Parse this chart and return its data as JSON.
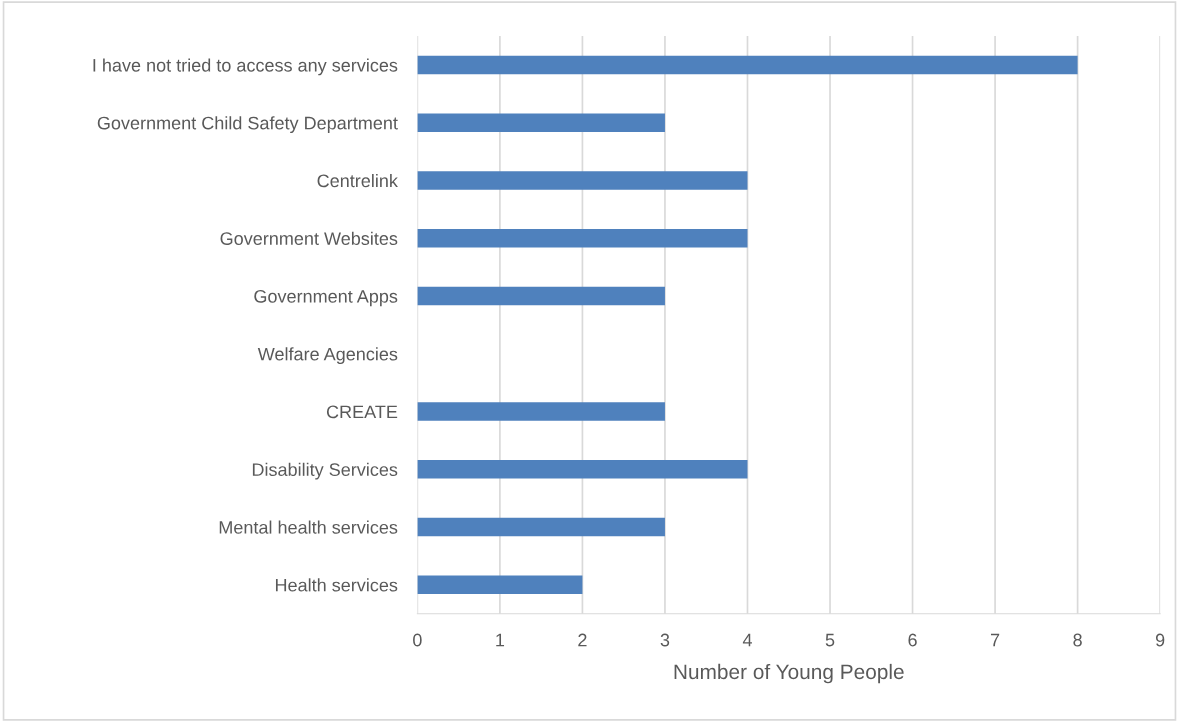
{
  "chart_data": {
    "type": "bar",
    "orientation": "horizontal",
    "xlabel": "Number of Young People",
    "categories": [
      "I have not tried to access any services",
      "Government Child Safety Department",
      "Centrelink",
      "Government Websites",
      "Government Apps",
      "Welfare Agencies",
      "CREATE",
      "Disability Services",
      "Mental health services",
      "Health services"
    ],
    "values": [
      8,
      3,
      4,
      4,
      3,
      0,
      3,
      4,
      3,
      2
    ],
    "color": "#4f81bd",
    "xlim": [
      0,
      9
    ],
    "xticks": [
      0,
      1,
      2,
      3,
      4,
      5,
      6,
      7,
      8,
      9
    ],
    "grid": "x"
  }
}
